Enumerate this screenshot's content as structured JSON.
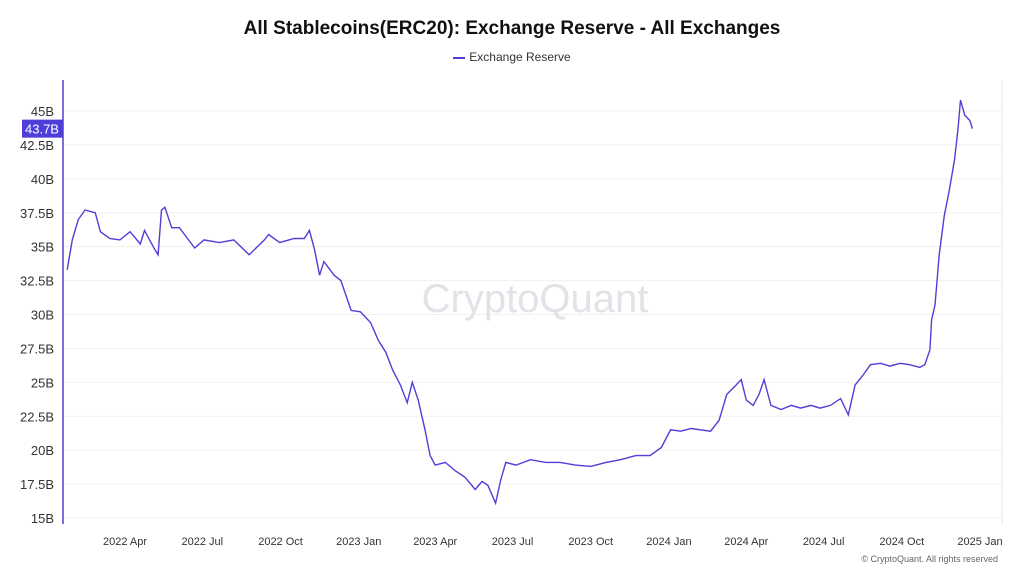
{
  "chart_data": {
    "type": "line",
    "title": "All Stablecoins(ERC20): Exchange Reserve - All Exchanges",
    "legend_position": "top-center",
    "grid": true,
    "ylim": [
      15,
      47
    ],
    "xlim": [
      "2022-01-20",
      "2025-01-10"
    ],
    "y_ticks": [
      15,
      17.5,
      20,
      22.5,
      25,
      27.5,
      30,
      32.5,
      35,
      37.5,
      40,
      42.5,
      45
    ],
    "y_tick_labels": [
      "15B",
      "17.5B",
      "20B",
      "22.5B",
      "25B",
      "27.5B",
      "30B",
      "32.5B",
      "35B",
      "37.5B",
      "40B",
      "42.5B",
      "45B"
    ],
    "x_ticks": [
      "2022-04-01",
      "2022-07-01",
      "2022-10-01",
      "2023-01-01",
      "2023-04-01",
      "2023-07-01",
      "2023-10-01",
      "2024-01-01",
      "2024-04-01",
      "2024-07-01",
      "2024-10-01",
      "2025-01-01"
    ],
    "x_tick_labels": [
      "2022 Apr",
      "2022 Jul",
      "2022 Oct",
      "2023 Jan",
      "2023 Apr",
      "2023 Jul",
      "2023 Oct",
      "2024 Jan",
      "2024 Apr",
      "2024 Jul",
      "2024 Oct",
      "2025 Jan"
    ],
    "current_value_label": "43.7B",
    "series": [
      {
        "name": "Exchange Reserve",
        "color": "#4f3fd8",
        "unit": "B",
        "points": [
          [
            "2022-01-23",
            33.3
          ],
          [
            "2022-01-29",
            35.5
          ],
          [
            "2022-02-05",
            37.0
          ],
          [
            "2022-02-13",
            37.7
          ],
          [
            "2022-02-25",
            37.5
          ],
          [
            "2022-03-03",
            36.1
          ],
          [
            "2022-03-14",
            35.6
          ],
          [
            "2022-03-26",
            35.5
          ],
          [
            "2022-04-07",
            36.1
          ],
          [
            "2022-04-19",
            35.2
          ],
          [
            "2022-04-24",
            36.2
          ],
          [
            "2022-05-06",
            34.8
          ],
          [
            "2022-05-10",
            34.4
          ],
          [
            "2022-05-14",
            37.7
          ],
          [
            "2022-05-18",
            37.9
          ],
          [
            "2022-05-26",
            36.4
          ],
          [
            "2022-06-04",
            36.4
          ],
          [
            "2022-06-10",
            35.9
          ],
          [
            "2022-06-22",
            34.9
          ],
          [
            "2022-07-03",
            35.5
          ],
          [
            "2022-07-21",
            35.3
          ],
          [
            "2022-08-07",
            35.5
          ],
          [
            "2022-08-25",
            34.4
          ],
          [
            "2022-09-12",
            35.5
          ],
          [
            "2022-09-17",
            35.9
          ],
          [
            "2022-09-30",
            35.3
          ],
          [
            "2022-10-17",
            35.6
          ],
          [
            "2022-10-29",
            35.6
          ],
          [
            "2022-11-04",
            36.2
          ],
          [
            "2022-11-10",
            34.8
          ],
          [
            "2022-11-16",
            32.9
          ],
          [
            "2022-11-21",
            33.9
          ],
          [
            "2022-12-03",
            32.9
          ],
          [
            "2022-12-11",
            32.5
          ],
          [
            "2022-12-23",
            30.3
          ],
          [
            "2023-01-03",
            30.2
          ],
          [
            "2023-01-15",
            29.4
          ],
          [
            "2023-01-24",
            28.1
          ],
          [
            "2023-02-02",
            27.2
          ],
          [
            "2023-02-10",
            25.9
          ],
          [
            "2023-02-19",
            24.8
          ],
          [
            "2023-02-27",
            23.5
          ],
          [
            "2023-03-05",
            25.0
          ],
          [
            "2023-03-12",
            23.7
          ],
          [
            "2023-03-20",
            21.5
          ],
          [
            "2023-03-26",
            19.6
          ],
          [
            "2023-04-01",
            18.9
          ],
          [
            "2023-04-13",
            19.1
          ],
          [
            "2023-04-24",
            18.5
          ],
          [
            "2023-05-06",
            18.0
          ],
          [
            "2023-05-18",
            17.1
          ],
          [
            "2023-05-26",
            17.7
          ],
          [
            "2023-06-02",
            17.4
          ],
          [
            "2023-06-11",
            16.1
          ],
          [
            "2023-06-17",
            17.8
          ],
          [
            "2023-06-23",
            19.1
          ],
          [
            "2023-07-05",
            18.9
          ],
          [
            "2023-07-22",
            19.3
          ],
          [
            "2023-08-09",
            19.1
          ],
          [
            "2023-08-26",
            19.1
          ],
          [
            "2023-09-13",
            18.9
          ],
          [
            "2023-10-01",
            18.8
          ],
          [
            "2023-10-19",
            19.1
          ],
          [
            "2023-11-05",
            19.3
          ],
          [
            "2023-11-23",
            19.6
          ],
          [
            "2023-12-10",
            19.6
          ],
          [
            "2023-12-23",
            20.2
          ],
          [
            "2024-01-03",
            21.5
          ],
          [
            "2024-01-15",
            21.4
          ],
          [
            "2024-01-27",
            21.6
          ],
          [
            "2024-02-07",
            21.5
          ],
          [
            "2024-02-19",
            21.4
          ],
          [
            "2024-02-29",
            22.2
          ],
          [
            "2024-03-09",
            24.1
          ],
          [
            "2024-03-20",
            24.8
          ],
          [
            "2024-03-26",
            25.2
          ],
          [
            "2024-04-01",
            23.7
          ],
          [
            "2024-04-09",
            23.3
          ],
          [
            "2024-04-16",
            24.1
          ],
          [
            "2024-04-22",
            25.2
          ],
          [
            "2024-04-30",
            23.3
          ],
          [
            "2024-05-12",
            23.0
          ],
          [
            "2024-05-24",
            23.3
          ],
          [
            "2024-06-04",
            23.1
          ],
          [
            "2024-06-16",
            23.3
          ],
          [
            "2024-06-27",
            23.1
          ],
          [
            "2024-07-09",
            23.3
          ],
          [
            "2024-07-21",
            23.8
          ],
          [
            "2024-07-30",
            22.6
          ],
          [
            "2024-08-07",
            24.8
          ],
          [
            "2024-08-16",
            25.5
          ],
          [
            "2024-08-25",
            26.3
          ],
          [
            "2024-09-06",
            26.4
          ],
          [
            "2024-09-17",
            26.2
          ],
          [
            "2024-09-29",
            26.4
          ],
          [
            "2024-10-10",
            26.3
          ],
          [
            "2024-10-22",
            26.1
          ],
          [
            "2024-10-28",
            26.3
          ],
          [
            "2024-11-03",
            27.4
          ],
          [
            "2024-11-05",
            29.6
          ],
          [
            "2024-11-09",
            30.7
          ],
          [
            "2024-11-14",
            34.4
          ],
          [
            "2024-11-20",
            37.3
          ],
          [
            "2024-11-26",
            39.2
          ],
          [
            "2024-12-02",
            41.4
          ],
          [
            "2024-12-06",
            43.6
          ],
          [
            "2024-12-09",
            45.8
          ],
          [
            "2024-12-14",
            44.7
          ],
          [
            "2024-12-20",
            44.3
          ],
          [
            "2024-12-23",
            43.7
          ]
        ]
      }
    ]
  },
  "watermark": "CryptoQuant",
  "footer": "© CryptoQuant. All rights reserved"
}
